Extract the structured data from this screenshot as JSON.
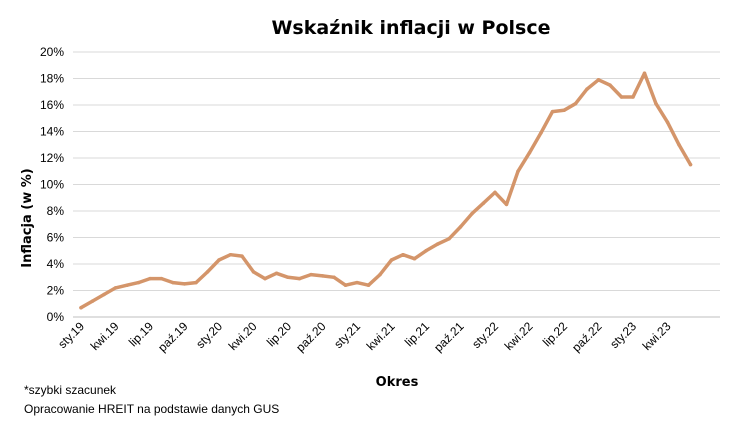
{
  "chart_data": {
    "type": "line",
    "title": "Wskaźnik inflacji w Polsce",
    "xlabel": "Okres",
    "ylabel": "Inflacja (w %)",
    "ylim": [
      0,
      20
    ],
    "y_ticks": [
      0,
      2,
      4,
      6,
      8,
      10,
      12,
      14,
      16,
      18,
      20
    ],
    "y_tick_labels": [
      "0%",
      "2%",
      "4%",
      "6%",
      "8%",
      "10%",
      "12%",
      "14%",
      "16%",
      "18%",
      "20%"
    ],
    "grid": true,
    "legend": "none",
    "color": "#D4956A",
    "x_ticks": [
      "sty.19",
      "kwi.19",
      "lip.19",
      "paź.19",
      "sty.20",
      "kwi.20",
      "lip.20",
      "paź.20",
      "sty.21",
      "kwi.21",
      "lip.21",
      "paź.21",
      "sty.22",
      "kwi.22",
      "lip.22",
      "paź.22",
      "sty.23",
      "kwi.23"
    ],
    "x": [
      "sty.19",
      "lut.19",
      "mar.19",
      "kwi.19",
      "maj.19",
      "cze.19",
      "lip.19",
      "sie.19",
      "wrz.19",
      "paź.19",
      "lis.19",
      "gru.19",
      "sty.20",
      "lut.20",
      "mar.20",
      "kwi.20",
      "maj.20",
      "cze.20",
      "lip.20",
      "sie.20",
      "wrz.20",
      "paź.20",
      "lis.20",
      "gru.20",
      "sty.21",
      "lut.21",
      "mar.21",
      "kwi.21",
      "maj.21",
      "cze.21",
      "lip.21",
      "sie.21",
      "wrz.21",
      "paź.21",
      "lis.21",
      "gru.21",
      "sty.22",
      "lut.22",
      "mar.22",
      "kwi.22",
      "maj.22",
      "cze.22",
      "lip.22",
      "sie.22",
      "wrz.22",
      "paź.22",
      "lis.22",
      "gru.22",
      "sty.23",
      "lut.23",
      "mar.23",
      "kwi.23",
      "maj.23",
      "cze.23"
    ],
    "series": [
      {
        "values": [
          0.7,
          1.2,
          1.7,
          2.2,
          2.4,
          2.6,
          2.9,
          2.9,
          2.6,
          2.5,
          2.6,
          3.4,
          4.3,
          4.7,
          4.6,
          3.4,
          2.9,
          3.3,
          3.0,
          2.9,
          3.2,
          3.1,
          3.0,
          2.4,
          2.6,
          2.4,
          3.2,
          4.3,
          4.7,
          4.4,
          5.0,
          5.5,
          5.9,
          6.8,
          7.8,
          8.6,
          9.4,
          8.5,
          11.0,
          12.4,
          13.9,
          15.5,
          15.6,
          16.1,
          17.2,
          17.9,
          17.5,
          16.6,
          16.6,
          18.4,
          16.1,
          14.7,
          13.0,
          11.5
        ]
      }
    ],
    "annotations": [
      "*szybki szacunek",
      "Opracowanie HREIT na podstawie danych GUS"
    ]
  }
}
